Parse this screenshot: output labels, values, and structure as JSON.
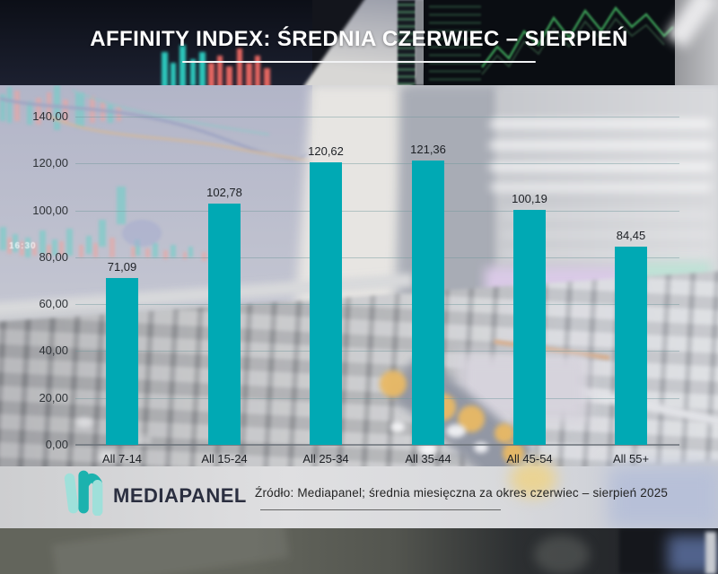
{
  "header": {
    "title": "AFFINITY INDEX: ŚREDNIA CZERWIEC – SIERPIEŃ"
  },
  "chart_data": {
    "type": "bar",
    "title": "AFFINITY INDEX: ŚREDNIA CZERWIEC – SIERPIEŃ",
    "categories": [
      "All 7-14",
      "All 15-24",
      "All 25-34",
      "All 35-44",
      "All 45-54",
      "All 55+"
    ],
    "values": [
      71.09,
      102.78,
      120.62,
      121.36,
      100.19,
      84.45
    ],
    "value_labels": [
      "71,09",
      "102,78",
      "120,62",
      "121,36",
      "100,19",
      "84,45"
    ],
    "y_ticks": [
      "140,00",
      "120,00",
      "100,00",
      "80,00",
      "60,00",
      "40,00",
      "20,00",
      "0,00"
    ],
    "ylim": [
      0,
      140
    ],
    "grid": true,
    "legend_position": "none",
    "bar_color": "#00a9b4"
  },
  "footer": {
    "brand": "MEDIAPANEL",
    "source": "Źródło: Mediapanel; średnia miesięczna za okres czerwiec – sierpień 2025"
  },
  "background": {
    "clock_text": "16:30"
  },
  "colors": {
    "bar": "#00a9b4",
    "title_text": "#ffffff",
    "brand_text": "#2b2f40",
    "logo_teal_light": "#9fe0da",
    "logo_teal_dark": "#1cb2ae"
  }
}
